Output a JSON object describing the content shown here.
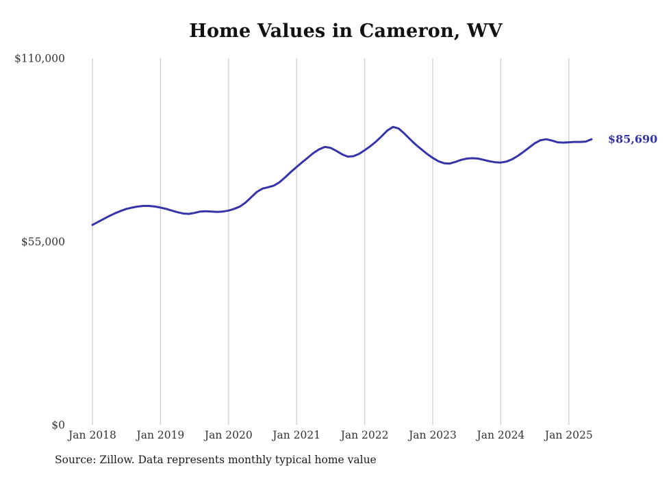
{
  "title": "Home Values in Cameron, WV",
  "source_note": "Source: Zillow. Data represents monthly typical home value",
  "colors": {
    "line": "#3533a8",
    "grid": "#cccccc",
    "tick_text": "#333333",
    "title_text": "#111111"
  },
  "chart_data": {
    "type": "line",
    "title": "Home Values in Cameron, WV",
    "ylabel": "",
    "xlabel": "",
    "ylim": [
      0,
      110000
    ],
    "grid": "vertical-only",
    "legend": "none",
    "y_ticks": [
      {
        "value": 0,
        "label": "$0"
      },
      {
        "value": 55000,
        "label": "$55,000"
      },
      {
        "value": 110000,
        "label": "$110,000"
      }
    ],
    "x_tick_labels": [
      "Jan 2018",
      "Jan 2019",
      "Jan 2020",
      "Jan 2021",
      "Jan 2022",
      "Jan 2023",
      "Jan 2024",
      "Jan 2025"
    ],
    "x_start": "2018-01",
    "x_interval": "monthly",
    "final_value": 85690,
    "final_value_label": "$85,690",
    "series": [
      {
        "name": "Typical home value",
        "monthly_values": [
          60000,
          60900,
          61800,
          62700,
          63500,
          64200,
          64800,
          65200,
          65500,
          65700,
          65700,
          65500,
          65200,
          64800,
          64300,
          63800,
          63400,
          63300,
          63600,
          64000,
          64100,
          64000,
          63900,
          64000,
          64300,
          64800,
          65500,
          66700,
          68300,
          69900,
          70900,
          71300,
          71800,
          72800,
          74300,
          75900,
          77400,
          78800,
          80200,
          81600,
          82700,
          83400,
          83100,
          82200,
          81200,
          80500,
          80600,
          81300,
          82400,
          83600,
          85000,
          86600,
          88300,
          89400,
          88900,
          87400,
          85700,
          84100,
          82700,
          81300,
          80100,
          79100,
          78500,
          78400,
          78900,
          79500,
          79900,
          80000,
          79900,
          79500,
          79100,
          78800,
          78700,
          79000,
          79700,
          80700,
          81900,
          83200,
          84500,
          85400,
          85700,
          85300,
          84800,
          84700,
          84800,
          84900,
          84900,
          85000,
          85690
        ]
      }
    ]
  }
}
